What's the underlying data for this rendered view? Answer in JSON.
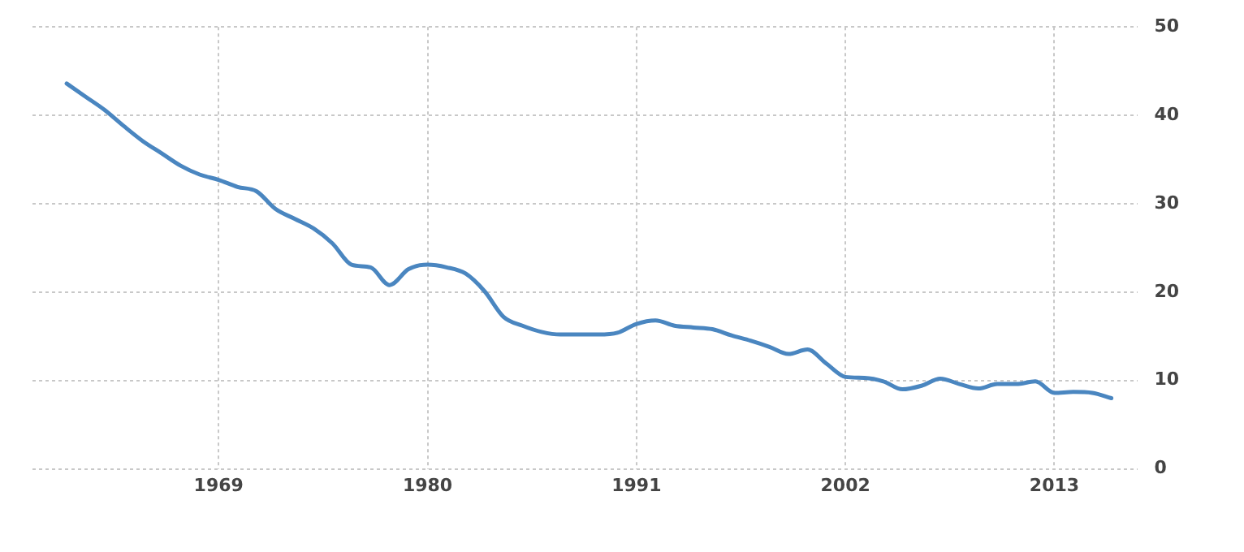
{
  "chart_data": {
    "type": "line",
    "x": [
      1961,
      1962,
      1963,
      1964,
      1965,
      1966,
      1967,
      1968,
      1969,
      1970,
      1971,
      1972,
      1973,
      1974,
      1975,
      1976,
      1977,
      1978,
      1979,
      1980,
      1981,
      1982,
      1983,
      1984,
      1985,
      1986,
      1987,
      1988,
      1989,
      1990,
      1991,
      1992,
      1993,
      1994,
      1995,
      1996,
      1997,
      1998,
      1999,
      2000,
      2001,
      2002,
      2003,
      2004,
      2005,
      2006,
      2007,
      2008,
      2009,
      2010,
      2011,
      2012,
      2013,
      2014,
      2015,
      2016
    ],
    "series": [
      {
        "color": "#4a86c0",
        "values": [
          43.6,
          42.1,
          40.6,
          38.8,
          37.1,
          35.7,
          34.3,
          33.3,
          32.7,
          31.9,
          31.4,
          29.4,
          28.3,
          27.2,
          25.5,
          23.1,
          22.8,
          20.8,
          22.6,
          23.1,
          22.8,
          22.1,
          20.1,
          17.2,
          16.2,
          15.5,
          15.2,
          15.2,
          15.2,
          15.4,
          16.4,
          16.8,
          16.2,
          16.0,
          15.8,
          15.1,
          14.5,
          13.8,
          13.0,
          13.5,
          11.9,
          10.4,
          10.3,
          9.9,
          9.0,
          9.4,
          10.2,
          9.6,
          9.1,
          9.6,
          9.6,
          9.9,
          8.6,
          8.7,
          8.6,
          8.0
        ]
      }
    ],
    "xlim": [
      1959.2,
      2017.4
    ],
    "xticks": [
      1969,
      1980,
      1991,
      2002,
      2013
    ],
    "ylim": [
      0,
      50
    ],
    "yticks": [
      0,
      10,
      20,
      30,
      40,
      50
    ],
    "grid": true,
    "legend": false,
    "marker": "none",
    "line_style": "solid"
  }
}
